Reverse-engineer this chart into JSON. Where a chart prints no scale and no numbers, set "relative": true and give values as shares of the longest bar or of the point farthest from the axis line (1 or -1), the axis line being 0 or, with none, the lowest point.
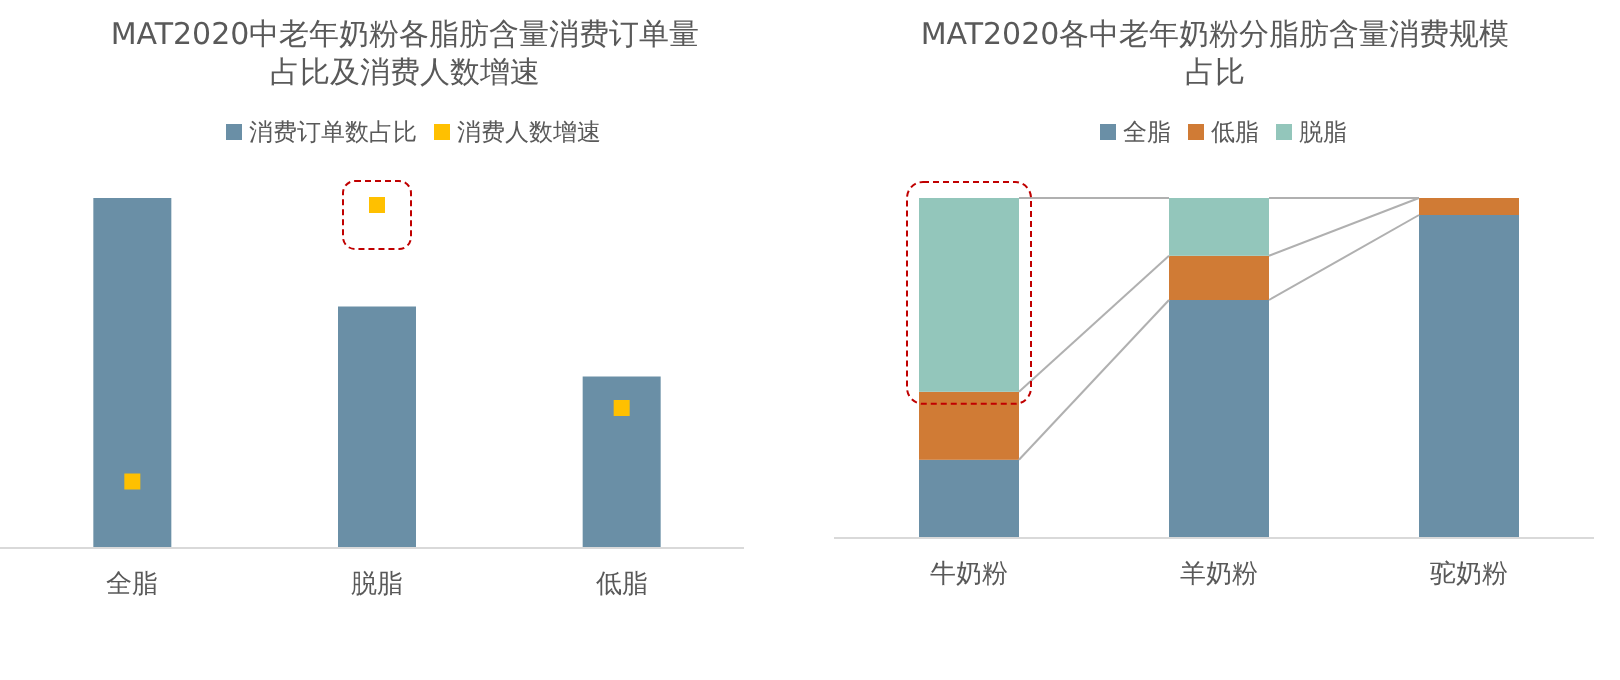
{
  "chart_data": [
    {
      "type": "bar",
      "title": "MAT2020中老年奶粉各脂肪含量消费订单量占比及消费人数增速",
      "relative": true,
      "legend": "top",
      "categories": [
        "全脂",
        "脱脂",
        "低脂"
      ],
      "series": [
        {
          "name": "消费订单数占比",
          "color": "#6a8fa6",
          "values": [
            1,
            0.69,
            0.49
          ]
        },
        {
          "name": "消费人数增速",
          "type": "scatter",
          "marker": "square",
          "color": "#ffc000",
          "x": [
            "全脂",
            "脱脂",
            "低脂"
          ],
          "values": [
            0.19,
            0.98,
            0.4
          ]
        }
      ]
    },
    {
      "type": "bar",
      "title": "MAT2020各中老年奶粉分脂肪含量消费规模占比",
      "relative": true,
      "stacked": true,
      "legend": "top",
      "categories": [
        "牛奶粉",
        "羊奶粉",
        "驼奶粉"
      ],
      "series": [
        {
          "name": "全脂",
          "color": "#6a8fa6",
          "values": [
            0.23,
            0.7,
            0.95
          ]
        },
        {
          "name": "低脂",
          "color": "#d07b35",
          "values": [
            0.2,
            0.13,
            0.05
          ]
        },
        {
          "name": "脱脂",
          "color": "#93c6bb",
          "values": [
            0.57,
            0.17,
            0
          ]
        }
      ]
    }
  ]
}
